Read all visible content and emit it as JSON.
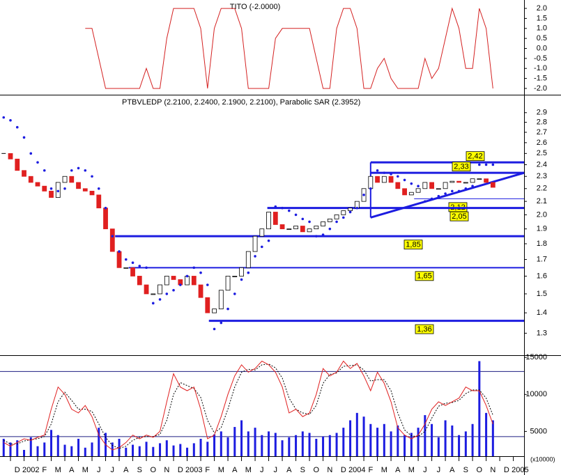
{
  "chart_data": {
    "type": "stock",
    "xlim": [
      -0.77,
      37.79
    ],
    "xticks": [
      {
        "value": 0,
        "label": "D"
      },
      {
        "value": 1,
        "label": "2002"
      },
      {
        "value": 2,
        "label": "F"
      },
      {
        "value": 3,
        "label": "M"
      },
      {
        "value": 4,
        "label": "A"
      },
      {
        "value": 5,
        "label": "M"
      },
      {
        "value": 6,
        "label": "J"
      },
      {
        "value": 7,
        "label": "J"
      },
      {
        "value": 8,
        "label": "A"
      },
      {
        "value": 9,
        "label": "S"
      },
      {
        "value": 10,
        "label": "O"
      },
      {
        "value": 11,
        "label": "N"
      },
      {
        "value": 12,
        "label": "D"
      },
      {
        "value": 13,
        "label": "2003"
      },
      {
        "value": 14,
        "label": "F"
      },
      {
        "value": 15,
        "label": "M"
      },
      {
        "value": 16,
        "label": "A"
      },
      {
        "value": 17,
        "label": "M"
      },
      {
        "value": 18,
        "label": "J"
      },
      {
        "value": 19,
        "label": "J"
      },
      {
        "value": 20,
        "label": "A"
      },
      {
        "value": 21,
        "label": "S"
      },
      {
        "value": 22,
        "label": "O"
      },
      {
        "value": 23,
        "label": "N"
      },
      {
        "value": 24,
        "label": "D"
      },
      {
        "value": 25,
        "label": "2004"
      },
      {
        "value": 26,
        "label": "F"
      },
      {
        "value": 27,
        "label": "M"
      },
      {
        "value": 28,
        "label": "A"
      },
      {
        "value": 29,
        "label": "M"
      },
      {
        "value": 30,
        "label": "J"
      },
      {
        "value": 31,
        "label": "J"
      },
      {
        "value": 32,
        "label": "A"
      },
      {
        "value": 33,
        "label": "S"
      },
      {
        "value": 34,
        "label": "O"
      },
      {
        "value": 35,
        "label": "N"
      },
      {
        "value": 36,
        "label": "D"
      },
      {
        "value": 37,
        "label": "2005"
      }
    ],
    "x": [
      -0.5,
      0,
      0.5,
      1,
      1.5,
      2,
      2.5,
      3,
      3.5,
      4,
      4.5,
      5,
      5.5,
      6,
      6.5,
      7,
      7.5,
      8,
      8.5,
      9,
      9.5,
      10,
      10.5,
      11,
      11.5,
      12,
      12.5,
      13,
      13.5,
      14,
      14.5,
      15,
      15.5,
      16,
      16.5,
      17,
      17.5,
      18,
      18.5,
      19,
      19.5,
      20,
      20.5,
      21,
      21.5,
      22,
      22.5,
      23,
      23.5,
      24,
      24.5,
      25,
      25.5,
      26,
      26.5,
      27,
      27.5,
      28,
      28.5,
      29,
      29.5,
      30,
      30.5,
      31,
      31.5,
      32,
      32.5,
      33,
      33.5,
      34,
      34.5,
      35,
      35.5
    ],
    "tito": {
      "title": "TITO (-2.0000)",
      "color": "#d42020",
      "ylim": [
        -2.28,
        2.42
      ],
      "yticks": [
        {
          "value": 2,
          "label": "2.0"
        },
        {
          "value": 1.5,
          "label": "1.5"
        },
        {
          "value": 1,
          "label": "1.0"
        },
        {
          "value": 0.5,
          "label": "0.5"
        },
        {
          "value": 0,
          "label": "0.0"
        },
        {
          "value": -0.5,
          "label": "-0.5"
        },
        {
          "value": -1,
          "label": "-1.0"
        },
        {
          "value": -1.5,
          "label": "-1.5"
        },
        {
          "value": -2,
          "label": "-2.0"
        }
      ],
      "values": [
        null,
        null,
        null,
        null,
        null,
        null,
        null,
        null,
        null,
        null,
        null,
        null,
        1,
        1,
        -0.5,
        -2,
        -2,
        -2,
        -2,
        -2,
        -2,
        -1,
        -2,
        -2,
        0.5,
        2,
        2,
        2,
        2,
        1,
        -2,
        1,
        2,
        2,
        2,
        1,
        -2,
        -2,
        -2,
        -2,
        0.5,
        1,
        1,
        1,
        1,
        1,
        -0.5,
        -2,
        -2,
        1,
        2,
        2,
        1,
        -2,
        -2,
        -1,
        -0.5,
        -1.5,
        -2,
        -2,
        -2,
        -2,
        -0.5,
        -1.5,
        -1,
        0.5,
        2,
        1,
        -1,
        -1,
        2,
        1,
        -2
      ]
    },
    "price": {
      "title": "PTBVLEDP (2.2100, 2.2400, 2.1900, 2.2100), Parabolic SAR (2.3952)",
      "log": true,
      "ylim": [
        1.2,
        3.08
      ],
      "yticks": [
        2.9,
        2.8,
        2.7,
        2.6,
        2.5,
        2.4,
        2.3,
        2.2,
        2.1,
        {
          "value": 2,
          "label": "2.0"
        },
        1.9,
        1.8,
        1.7,
        1.6,
        1.5,
        1.4,
        1.3
      ],
      "up_color": "#ffffff",
      "down_color": "#e02020",
      "sar_color": "#1c1ce0",
      "level_color": "#1c1ce0",
      "label_color": "#ffff00",
      "close": [
        2.5,
        2.45,
        2.35,
        2.3,
        2.25,
        2.22,
        2.18,
        2.13,
        2.25,
        2.3,
        2.25,
        2.2,
        2.18,
        2.15,
        2.05,
        1.9,
        1.75,
        1.65,
        1.65,
        1.6,
        1.55,
        1.5,
        1.5,
        1.55,
        1.6,
        1.58,
        1.55,
        1.6,
        1.55,
        1.48,
        1.4,
        1.42,
        1.52,
        1.6,
        1.6,
        1.65,
        1.75,
        1.85,
        1.9,
        2.02,
        1.93,
        1.9,
        1.9,
        1.92,
        1.88,
        1.9,
        1.92,
        1.95,
        1.97,
        2.0,
        2.03,
        2.05,
        2.1,
        2.2,
        2.3,
        2.25,
        2.3,
        2.25,
        2.2,
        2.15,
        2.17,
        2.2,
        2.25,
        2.2,
        2.2,
        2.25,
        2.26,
        2.25,
        2.25,
        2.28,
        2.28,
        2.25,
        2.21
      ],
      "sar": [
        2.85,
        2.82,
        2.75,
        2.65,
        2.5,
        2.42,
        2.35,
        2.2,
        2.18,
        2.2,
        2.35,
        2.37,
        2.35,
        2.3,
        2.2,
        2.05,
        1.85,
        1.75,
        1.7,
        1.68,
        1.66,
        1.65,
        1.45,
        1.47,
        1.5,
        1.52,
        1.55,
        1.6,
        1.65,
        1.62,
        1.55,
        1.32,
        1.35,
        1.42,
        1.5,
        1.58,
        1.62,
        1.72,
        1.78,
        1.82,
        2.06,
        2.05,
        2.03,
        2.0,
        1.97,
        1.95,
        1.85,
        1.86,
        1.9,
        1.95,
        1.98,
        2.02,
        2.05,
        2.15,
        2.2,
        2.35,
        2.33,
        2.32,
        2.3,
        2.27,
        2.24,
        2.22,
        2.1,
        2.12,
        2.14,
        2.16,
        2.18,
        2.18,
        2.2,
        2.22,
        2.4,
        2.4,
        2.4
      ],
      "levels": [
        {
          "value": 2.42,
          "label": "2,42",
          "from": 26.5
        },
        {
          "value": 2.33,
          "label": "2,33",
          "from": 26.5
        },
        {
          "value": 2.12,
          "label": "2,12",
          "from": 29.7
        },
        {
          "value": 2.05,
          "label": "2,05",
          "from": 18.9
        },
        {
          "value": 1.85,
          "label": "1,85",
          "from": 7.7
        },
        {
          "value": 1.65,
          "label": "1,65",
          "from": 8.7
        },
        {
          "value": 1.36,
          "label": "1,36",
          "from": 14.6
        }
      ],
      "trend": {
        "x": [
          26.5,
          37.79
        ],
        "y": [
          1.98,
          2.33
        ]
      }
    },
    "volume": {
      "unit_label": "(x10000)",
      "color": "#1c1ce0",
      "k_color": "#e02020",
      "d_color": "#000000",
      "ylim": [
        1650,
        15300
      ],
      "yticks": [
        15000,
        10000,
        5000
      ],
      "hlines": [
        13100,
        4300
      ],
      "values": [
        4000,
        3500,
        3800,
        2500,
        4200,
        3000,
        3500,
        5200,
        4500,
        3200,
        3000,
        4000,
        2800,
        3500,
        5500,
        4800,
        3500,
        4000,
        2800,
        3200,
        3000,
        3600,
        2900,
        3400,
        3800,
        3100,
        3300,
        2800,
        3400,
        4000,
        3600,
        4600,
        5000,
        4200,
        5600,
        6500,
        5000,
        5500,
        4500,
        5000,
        4800,
        3800,
        4200,
        4500,
        5000,
        4800,
        4000,
        4300,
        4500,
        4800,
        5500,
        6500,
        7500,
        7000,
        6000,
        5500,
        6000,
        5000,
        5800,
        4500,
        4800,
        5500,
        7200,
        6000,
        4200,
        6500,
        5800,
        4500,
        5000,
        6000,
        14500,
        7500,
        6500
      ],
      "k": [
        3500,
        3000,
        3500,
        4000,
        3800,
        4200,
        4500,
        8000,
        11000,
        10000,
        8000,
        7500,
        8500,
        7000,
        4500,
        3200,
        2500,
        2800,
        3500,
        4500,
        4000,
        4500,
        4200,
        5000,
        9000,
        12800,
        11000,
        10500,
        11000,
        8000,
        4000,
        4500,
        7000,
        10000,
        12500,
        14000,
        13000,
        13500,
        14500,
        14000,
        13000,
        11000,
        7500,
        8000,
        7000,
        7500,
        10000,
        13500,
        12500,
        13000,
        14500,
        13500,
        14200,
        12500,
        10500,
        13000,
        11500,
        9000,
        5500,
        4500,
        4000,
        4500,
        6000,
        8000,
        9000,
        8500,
        9000,
        9500,
        11000,
        10500,
        10500,
        8500,
        6000
      ],
      "d": [
        3800,
        3300,
        3300,
        3700,
        3900,
        4000,
        4300,
        6000,
        9000,
        10300,
        9200,
        8000,
        8000,
        7700,
        6000,
        4200,
        3100,
        2700,
        3000,
        3800,
        4200,
        4300,
        4300,
        4600,
        6500,
        10000,
        11600,
        11200,
        10800,
        9600,
        6500,
        4800,
        5500,
        8000,
        11000,
        13000,
        13400,
        13300,
        14000,
        14100,
        13600,
        12200,
        9500,
        8000,
        7500,
        7300,
        8500,
        11500,
        12700,
        12900,
        13800,
        13900,
        14000,
        13300,
        11800,
        12000,
        12000,
        10500,
        7500,
        5200,
        4400,
        4300,
        5000,
        6800,
        8400,
        8800,
        8900,
        9200,
        10100,
        10600,
        10600,
        9500,
        7200
      ]
    }
  }
}
